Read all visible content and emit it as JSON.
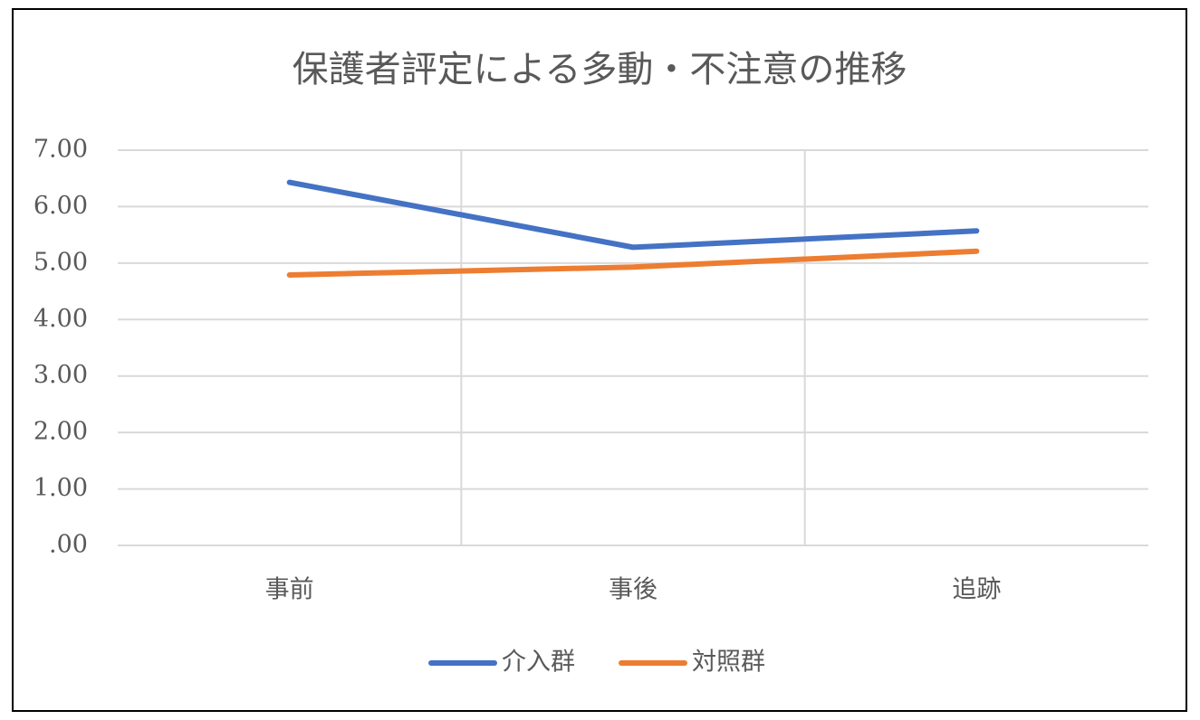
{
  "chart_data": {
    "type": "line",
    "title": "保護者評定による多動・不注意の推移",
    "categories": [
      "事前",
      "事後",
      "追跡"
    ],
    "series": [
      {
        "name": "介入群",
        "color": "#4472c4",
        "values": [
          6.43,
          5.28,
          5.57
        ]
      },
      {
        "name": "対照群",
        "color": "#ed7d31",
        "values": [
          4.79,
          4.93,
          5.21
        ]
      }
    ],
    "ylim": [
      0,
      7
    ],
    "yticks": [
      {
        "value": 0,
        "label": ".00"
      },
      {
        "value": 1,
        "label": "1.00"
      },
      {
        "value": 2,
        "label": "2.00"
      },
      {
        "value": 3,
        "label": "3.00"
      },
      {
        "value": 4,
        "label": "4.00"
      },
      {
        "value": 5,
        "label": "5.00"
      },
      {
        "value": 6,
        "label": "6.00"
      },
      {
        "value": 7,
        "label": "7.00"
      }
    ],
    "grid": true,
    "legend": "bottom"
  }
}
